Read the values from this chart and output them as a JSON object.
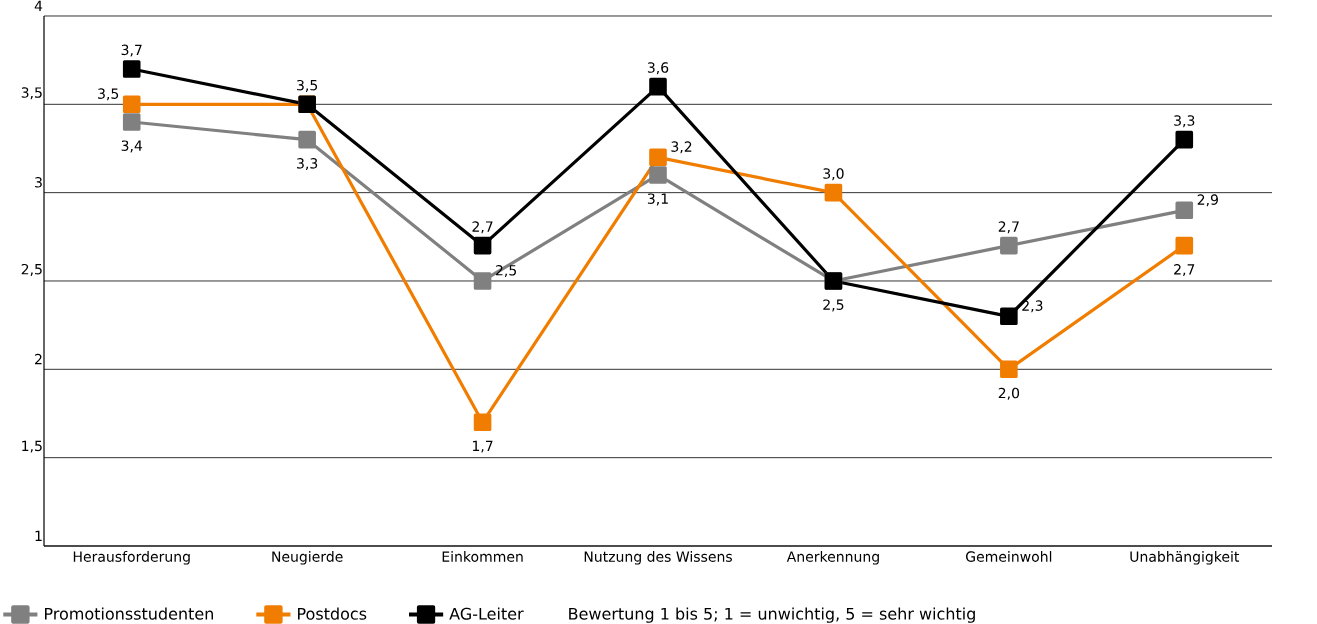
{
  "chart_data": {
    "type": "line",
    "categories": [
      "Herausforderung",
      "Neugierde",
      "Einkommen",
      "Nutzung des Wissens",
      "Anerkennung",
      "Gemeinwohl",
      "Unabhängigkeit"
    ],
    "series": [
      {
        "name": "Promotionsstudenten",
        "color": "#808080",
        "values": [
          3.4,
          3.3,
          2.5,
          3.1,
          2.5,
          2.7,
          2.9
        ],
        "value_labels": [
          "3,4",
          "3,3",
          "2,5",
          "3,1",
          "2,5",
          "2,7",
          "2,9"
        ]
      },
      {
        "name": "Postdocs",
        "color": "#f07d00",
        "values": [
          3.5,
          3.5,
          1.7,
          3.2,
          3.0,
          2.0,
          2.7
        ],
        "value_labels": [
          "3,5",
          "3,5",
          "1,7",
          "3,2",
          "3,0",
          "2,0",
          "2,7"
        ]
      },
      {
        "name": "AG-Leiter",
        "color": "#000000",
        "values": [
          3.7,
          3.5,
          2.7,
          3.6,
          2.5,
          2.3,
          3.3
        ],
        "value_labels": [
          "3,7",
          null,
          "2,7",
          "3,6",
          null,
          "2,3",
          "3,3"
        ]
      }
    ],
    "ylim": [
      1,
      4
    ],
    "yticks": [
      1,
      {
        "value": 1.5,
        "label": "1,5"
      },
      2,
      {
        "value": 2.5,
        "label": "2,5"
      },
      3,
      {
        "value": 3.5,
        "label": "3,5"
      },
      4
    ],
    "grid": "y",
    "legend": "bottom",
    "marker": "square",
    "line_style": "solid",
    "annotations": [
      "Bewertung 1 bis 5; 1 = unwichtig, 5 = sehr wichtig"
    ]
  }
}
